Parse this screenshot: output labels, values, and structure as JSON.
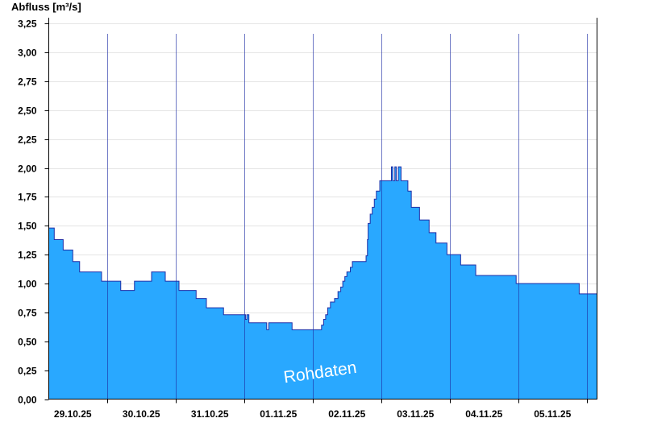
{
  "chart_data": {
    "type": "area",
    "title": "",
    "ylabel": "Abfluss [m³/s]",
    "xlabel": "",
    "ylim": [
      0,
      3.3
    ],
    "x_range_days": [
      -0.35,
      7.65
    ],
    "yticks": [
      "0,00",
      "0,25",
      "0,50",
      "0,75",
      "1,00",
      "1,25",
      "1,50",
      "1,75",
      "2,00",
      "2,25",
      "2,50",
      "2,75",
      "3,00",
      "3,25"
    ],
    "xticks": [
      "29.10.25",
      "30.10.25",
      "31.10.25",
      "01.11.25",
      "02.11.25",
      "03.11.25",
      "04.11.25",
      "05.11.25"
    ],
    "grid": true,
    "fill_color": "#29a8ff",
    "line_color": "#1e2ea6",
    "annotation": "Rohdaten",
    "series": [
      {
        "points": [
          [
            -0.35,
            1.48
          ],
          [
            -0.27,
            1.38
          ],
          [
            -0.14,
            1.29
          ],
          [
            0.0,
            1.19
          ],
          [
            0.1,
            1.1
          ],
          [
            0.42,
            1.02
          ],
          [
            0.7,
            0.94
          ],
          [
            0.9,
            1.02
          ],
          [
            1.15,
            1.1
          ],
          [
            1.35,
            1.02
          ],
          [
            1.55,
            0.94
          ],
          [
            1.8,
            0.87
          ],
          [
            1.95,
            0.79
          ],
          [
            2.2,
            0.73
          ],
          [
            2.49,
            0.73
          ],
          [
            2.52,
            0.69
          ],
          [
            2.54,
            0.73
          ],
          [
            2.57,
            0.66
          ],
          [
            2.8,
            0.66
          ],
          [
            2.83,
            0.6
          ],
          [
            2.86,
            0.66
          ],
          [
            3.2,
            0.6
          ],
          [
            3.6,
            0.6
          ],
          [
            3.63,
            0.64
          ],
          [
            3.66,
            0.69
          ],
          [
            3.69,
            0.73
          ],
          [
            3.72,
            0.79
          ],
          [
            3.76,
            0.84
          ],
          [
            3.82,
            0.87
          ],
          [
            3.87,
            0.93
          ],
          [
            3.91,
            0.97
          ],
          [
            3.94,
            1.02
          ],
          [
            3.97,
            1.06
          ],
          [
            4.0,
            1.1
          ],
          [
            4.05,
            1.14
          ],
          [
            4.08,
            1.19
          ],
          [
            4.28,
            1.24
          ],
          [
            4.3,
            1.38
          ],
          [
            4.31,
            1.52
          ],
          [
            4.34,
            1.6
          ],
          [
            4.37,
            1.66
          ],
          [
            4.4,
            1.73
          ],
          [
            4.43,
            1.8
          ],
          [
            4.48,
            1.89
          ],
          [
            4.65,
            2.01
          ],
          [
            4.67,
            1.89
          ],
          [
            4.7,
            2.01
          ],
          [
            4.72,
            1.89
          ],
          [
            4.75,
            2.01
          ],
          [
            4.79,
            1.89
          ],
          [
            4.89,
            1.8
          ],
          [
            4.94,
            1.66
          ],
          [
            5.06,
            1.55
          ],
          [
            5.2,
            1.44
          ],
          [
            5.3,
            1.35
          ],
          [
            5.46,
            1.25
          ],
          [
            5.66,
            1.16
          ],
          [
            5.88,
            1.07
          ],
          [
            6.47,
            1.0
          ],
          [
            7.39,
            0.91
          ]
        ],
        "x_end": 7.65
      }
    ]
  }
}
